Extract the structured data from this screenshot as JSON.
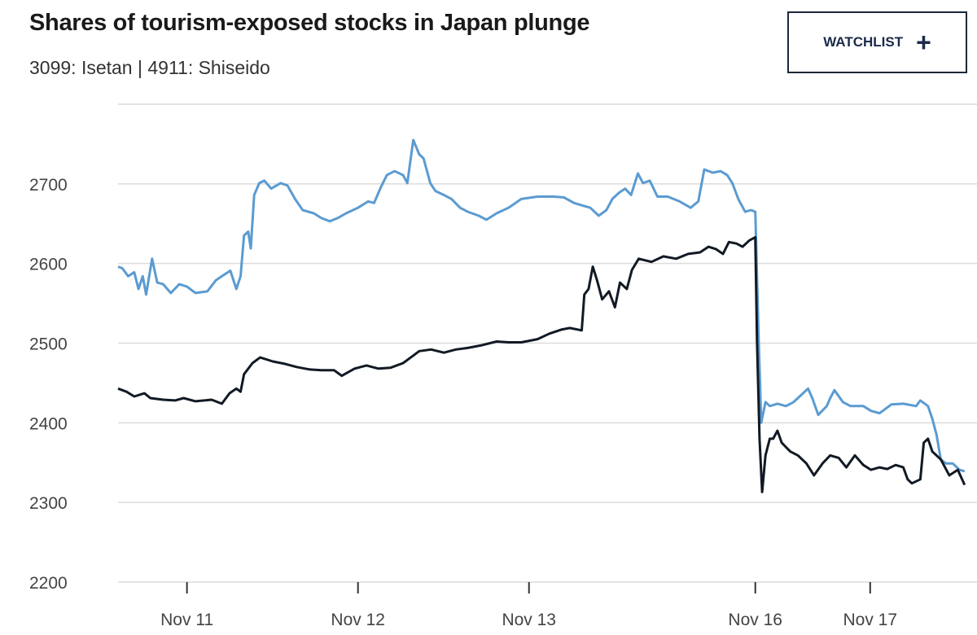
{
  "chart_data": {
    "type": "line",
    "title": "Shares of tourism-exposed stocks in Japan plunge",
    "subtitle": "3099: Isetan | 4911: Shiseido",
    "xlabel": "",
    "ylabel": "",
    "ylim": [
      2200,
      2800
    ],
    "yticks": [
      2200,
      2300,
      2400,
      2500,
      2600,
      2700
    ],
    "xlim": [
      0,
      100
    ],
    "xticks": [
      {
        "x": 8.1,
        "label": "Nov 11"
      },
      {
        "x": 28.2,
        "label": "Nov 12"
      },
      {
        "x": 48.3,
        "label": "Nov 13"
      },
      {
        "x": 74.9,
        "label": "Nov 16"
      },
      {
        "x": 88.4,
        "label": "Nov 17"
      }
    ],
    "grid": true,
    "series": [
      {
        "name": "3099: Isetan",
        "color": "#5b9bd1",
        "points": [
          [
            0,
            2596
          ],
          [
            0.5,
            2594
          ],
          [
            1.2,
            2584
          ],
          [
            1.9,
            2589
          ],
          [
            2.4,
            2568
          ],
          [
            2.9,
            2584
          ],
          [
            3.3,
            2561
          ],
          [
            4.0,
            2606
          ],
          [
            4.6,
            2576
          ],
          [
            5.3,
            2574
          ],
          [
            6.2,
            2563
          ],
          [
            7.2,
            2574
          ],
          [
            8.1,
            2571
          ],
          [
            9.1,
            2563
          ],
          [
            10.5,
            2565
          ],
          [
            11.5,
            2579
          ],
          [
            12.2,
            2584
          ],
          [
            13.2,
            2591
          ],
          [
            13.9,
            2568
          ],
          [
            14.4,
            2584
          ],
          [
            14.8,
            2635
          ],
          [
            15.3,
            2640
          ],
          [
            15.6,
            2619
          ],
          [
            16.0,
            2686
          ],
          [
            16.6,
            2701
          ],
          [
            17.2,
            2704
          ],
          [
            18.0,
            2694
          ],
          [
            19.1,
            2701
          ],
          [
            19.9,
            2698
          ],
          [
            20.8,
            2681
          ],
          [
            21.7,
            2667
          ],
          [
            23.0,
            2663
          ],
          [
            23.9,
            2657
          ],
          [
            24.9,
            2653
          ],
          [
            25.8,
            2657
          ],
          [
            26.8,
            2663
          ],
          [
            28.2,
            2670
          ],
          [
            29.4,
            2678
          ],
          [
            30.1,
            2676
          ],
          [
            30.9,
            2696
          ],
          [
            31.6,
            2711
          ],
          [
            32.5,
            2716
          ],
          [
            33.5,
            2711
          ],
          [
            34.0,
            2701
          ],
          [
            34.7,
            2755
          ],
          [
            35.4,
            2737
          ],
          [
            35.9,
            2732
          ],
          [
            36.7,
            2701
          ],
          [
            37.3,
            2691
          ],
          [
            38.3,
            2686
          ],
          [
            39.2,
            2681
          ],
          [
            40.2,
            2670
          ],
          [
            41.1,
            2665
          ],
          [
            42.4,
            2660
          ],
          [
            43.3,
            2655
          ],
          [
            44.5,
            2663
          ],
          [
            45.9,
            2670
          ],
          [
            47.4,
            2681
          ],
          [
            49.3,
            2684
          ],
          [
            51.2,
            2684
          ],
          [
            52.4,
            2683
          ],
          [
            53.6,
            2676
          ],
          [
            54.5,
            2673
          ],
          [
            55.5,
            2670
          ],
          [
            56.5,
            2660
          ],
          [
            57.4,
            2667
          ],
          [
            58.1,
            2681
          ],
          [
            58.9,
            2689
          ],
          [
            59.6,
            2694
          ],
          [
            60.3,
            2686
          ],
          [
            61.1,
            2713
          ],
          [
            61.7,
            2701
          ],
          [
            62.5,
            2704
          ],
          [
            63.4,
            2684
          ],
          [
            64.6,
            2684
          ],
          [
            66.0,
            2678
          ],
          [
            67.3,
            2670
          ],
          [
            68.2,
            2678
          ],
          [
            68.9,
            2718
          ],
          [
            69.9,
            2714
          ],
          [
            70.8,
            2716
          ],
          [
            71.6,
            2711
          ],
          [
            72.2,
            2701
          ],
          [
            72.9,
            2681
          ],
          [
            73.7,
            2665
          ],
          [
            74.4,
            2667
          ],
          [
            74.9,
            2665
          ],
          [
            75.3,
            2502
          ],
          [
            75.6,
            2400
          ],
          [
            76.1,
            2426
          ],
          [
            76.6,
            2421
          ],
          [
            77.5,
            2424
          ],
          [
            78.5,
            2421
          ],
          [
            79.4,
            2426
          ],
          [
            80.4,
            2436
          ],
          [
            81.1,
            2443
          ],
          [
            81.6,
            2431
          ],
          [
            82.3,
            2410
          ],
          [
            83.3,
            2421
          ],
          [
            83.7,
            2431
          ],
          [
            84.2,
            2441
          ],
          [
            85.2,
            2426
          ],
          [
            86.1,
            2421
          ],
          [
            87.6,
            2421
          ],
          [
            88.5,
            2415
          ],
          [
            89.5,
            2412
          ],
          [
            90.9,
            2423
          ],
          [
            92.3,
            2424
          ],
          [
            93.8,
            2421
          ],
          [
            94.3,
            2428
          ],
          [
            95.2,
            2421
          ],
          [
            95.7,
            2405
          ],
          [
            96.2,
            2385
          ],
          [
            96.7,
            2354
          ],
          [
            97.3,
            2349
          ],
          [
            98.1,
            2349
          ],
          [
            98.9,
            2341
          ],
          [
            99.5,
            2339
          ]
        ]
      },
      {
        "name": "4911: Shiseido",
        "color": "#111a24",
        "points": [
          [
            0,
            2443
          ],
          [
            1.0,
            2439
          ],
          [
            1.9,
            2433
          ],
          [
            3.1,
            2437
          ],
          [
            3.8,
            2431
          ],
          [
            5.3,
            2429
          ],
          [
            6.7,
            2428
          ],
          [
            7.7,
            2431
          ],
          [
            9.1,
            2427
          ],
          [
            11.0,
            2429
          ],
          [
            12.2,
            2424
          ],
          [
            13.1,
            2437
          ],
          [
            13.9,
            2443
          ],
          [
            14.4,
            2439
          ],
          [
            14.8,
            2461
          ],
          [
            15.8,
            2475
          ],
          [
            16.7,
            2482
          ],
          [
            18.2,
            2477
          ],
          [
            19.6,
            2474
          ],
          [
            21.0,
            2470
          ],
          [
            22.5,
            2467
          ],
          [
            23.9,
            2466
          ],
          [
            25.4,
            2466
          ],
          [
            26.3,
            2459
          ],
          [
            27.8,
            2468
          ],
          [
            29.2,
            2472
          ],
          [
            30.6,
            2468
          ],
          [
            32.0,
            2469
          ],
          [
            33.5,
            2475
          ],
          [
            34.4,
            2482
          ],
          [
            35.4,
            2490
          ],
          [
            36.8,
            2492
          ],
          [
            38.3,
            2488
          ],
          [
            39.7,
            2492
          ],
          [
            41.1,
            2494
          ],
          [
            42.6,
            2497
          ],
          [
            44.5,
            2502
          ],
          [
            45.9,
            2501
          ],
          [
            47.4,
            2501
          ],
          [
            49.3,
            2505
          ],
          [
            50.7,
            2512
          ],
          [
            52.1,
            2517
          ],
          [
            53.1,
            2519
          ],
          [
            54.5,
            2516
          ],
          [
            54.8,
            2561
          ],
          [
            55.3,
            2568
          ],
          [
            55.8,
            2596
          ],
          [
            56.3,
            2579
          ],
          [
            56.9,
            2555
          ],
          [
            57.7,
            2565
          ],
          [
            58.4,
            2545
          ],
          [
            59.0,
            2576
          ],
          [
            59.8,
            2568
          ],
          [
            60.4,
            2592
          ],
          [
            61.2,
            2606
          ],
          [
            62.7,
            2602
          ],
          [
            64.1,
            2609
          ],
          [
            65.6,
            2606
          ],
          [
            67.0,
            2612
          ],
          [
            68.4,
            2614
          ],
          [
            69.4,
            2621
          ],
          [
            70.3,
            2618
          ],
          [
            71.1,
            2612
          ],
          [
            71.8,
            2627
          ],
          [
            72.7,
            2625
          ],
          [
            73.4,
            2621
          ],
          [
            74.2,
            2629
          ],
          [
            74.9,
            2633
          ],
          [
            75.1,
            2502
          ],
          [
            75.4,
            2380
          ],
          [
            75.7,
            2313
          ],
          [
            76.1,
            2359
          ],
          [
            76.6,
            2380
          ],
          [
            77.0,
            2380
          ],
          [
            77.5,
            2390
          ],
          [
            78.0,
            2375
          ],
          [
            79.0,
            2364
          ],
          [
            79.9,
            2359
          ],
          [
            80.9,
            2349
          ],
          [
            81.8,
            2334
          ],
          [
            82.8,
            2349
          ],
          [
            83.7,
            2359
          ],
          [
            84.7,
            2356
          ],
          [
            85.6,
            2344
          ],
          [
            86.6,
            2359
          ],
          [
            87.6,
            2347
          ],
          [
            88.5,
            2341
          ],
          [
            89.5,
            2344
          ],
          [
            90.4,
            2342
          ],
          [
            91.4,
            2347
          ],
          [
            92.3,
            2344
          ],
          [
            92.8,
            2329
          ],
          [
            93.3,
            2324
          ],
          [
            94.3,
            2329
          ],
          [
            94.7,
            2375
          ],
          [
            95.2,
            2380
          ],
          [
            95.7,
            2364
          ],
          [
            96.7,
            2354
          ],
          [
            97.7,
            2334
          ],
          [
            98.7,
            2341
          ],
          [
            99.5,
            2322
          ]
        ]
      }
    ]
  },
  "watchlist": {
    "label": "WATCHLIST",
    "icon": "plus-icon"
  }
}
